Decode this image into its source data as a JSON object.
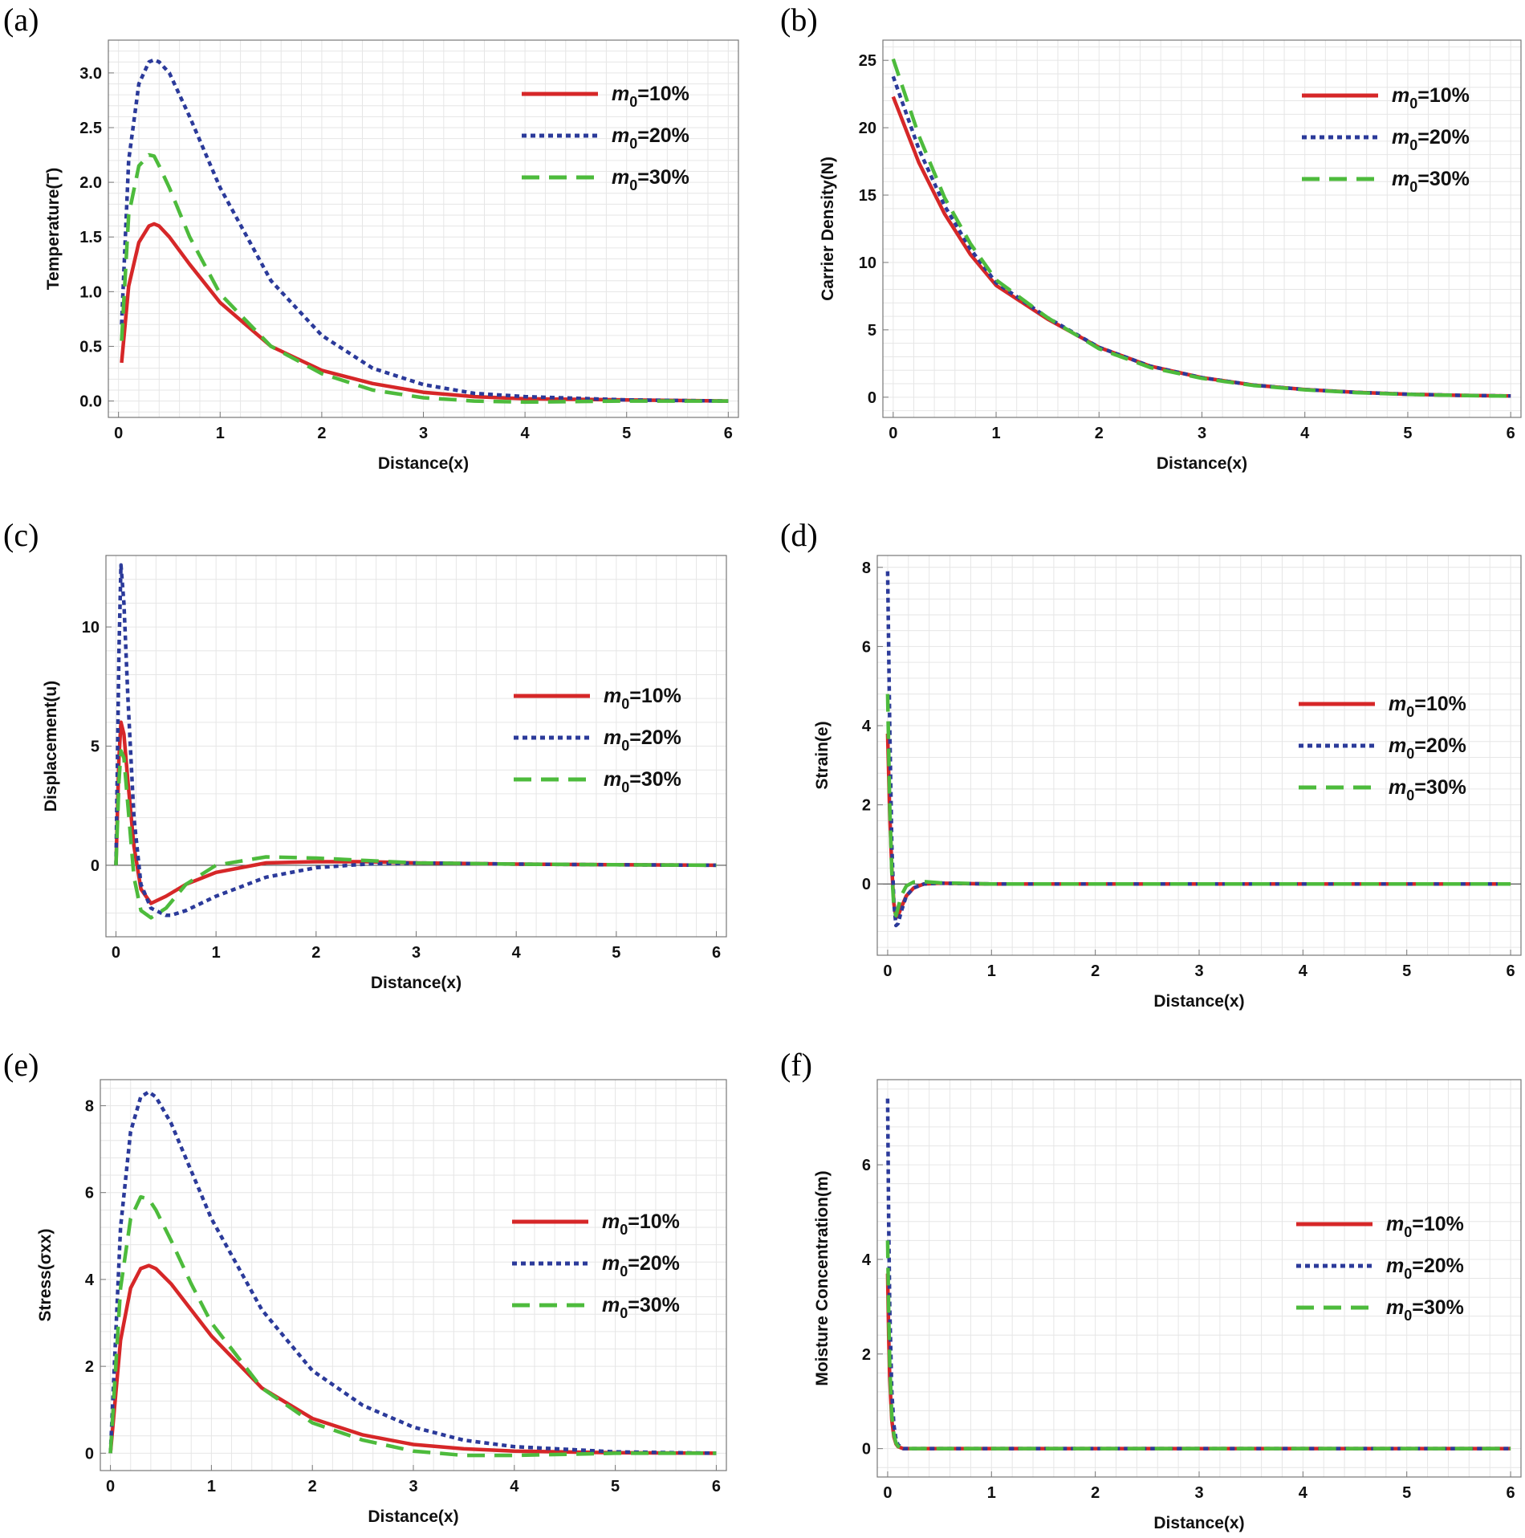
{
  "legend_labels": [
    "m0=10%",
    "m0=20%",
    "m0=30%"
  ],
  "legend_main": "m",
  "legend_sub": "0",
  "legend_suffix": [
    "=10%",
    "=20%",
    "=30%"
  ],
  "colors": {
    "m0_10": "#d62728",
    "m0_20": "#2b3a9a",
    "m0_30": "#4dbb3c"
  },
  "chart_data": [
    {
      "type": "line",
      "panel_label": "(a)",
      "title": "",
      "xlabel": "Distance(x)",
      "ylabel": "Temperature(T)",
      "xlim": [
        -0.1,
        6.1
      ],
      "ylim": [
        -0.15,
        3.3
      ],
      "xticks": [
        0,
        1,
        2,
        3,
        4,
        5,
        6
      ],
      "yticks": [
        0.0,
        0.5,
        1.0,
        1.5,
        2.0,
        2.5,
        3.0
      ],
      "ytick_labels": [
        "0.0",
        "0.5",
        "1.0",
        "1.5",
        "2.0",
        "2.5",
        "3.0"
      ],
      "zero_line": false,
      "series": [
        {
          "name": "m0=10%",
          "x": [
            0.03,
            0.1,
            0.2,
            0.3,
            0.35,
            0.4,
            0.5,
            0.7,
            1.0,
            1.5,
            2.0,
            2.5,
            3.0,
            3.5,
            4.0,
            5.0,
            6.0
          ],
          "values": [
            0.35,
            1.05,
            1.45,
            1.6,
            1.62,
            1.6,
            1.5,
            1.25,
            0.9,
            0.5,
            0.28,
            0.16,
            0.08,
            0.04,
            0.02,
            0.01,
            0.0
          ]
        },
        {
          "name": "m0=20%",
          "x": [
            0.03,
            0.1,
            0.2,
            0.3,
            0.35,
            0.4,
            0.5,
            0.7,
            1.0,
            1.5,
            2.0,
            2.5,
            3.0,
            3.5,
            4.0,
            5.0,
            6.0
          ],
          "values": [
            0.7,
            2.2,
            2.9,
            3.1,
            3.12,
            3.1,
            3.0,
            2.6,
            1.95,
            1.1,
            0.6,
            0.3,
            0.15,
            0.07,
            0.04,
            0.01,
            0.0
          ]
        },
        {
          "name": "m0=30%",
          "x": [
            0.03,
            0.1,
            0.2,
            0.3,
            0.35,
            0.4,
            0.5,
            0.7,
            1.0,
            1.5,
            2.0,
            2.5,
            3.0,
            3.5,
            4.0,
            5.0,
            6.0
          ],
          "values": [
            0.55,
            1.7,
            2.15,
            2.25,
            2.24,
            2.15,
            1.95,
            1.5,
            0.98,
            0.5,
            0.25,
            0.1,
            0.03,
            0.0,
            -0.01,
            0.0,
            0.0
          ]
        }
      ],
      "legend_position": "top-right"
    },
    {
      "type": "line",
      "panel_label": "(b)",
      "title": "",
      "xlabel": "Distance(x)",
      "ylabel": "Carrier Density(N)",
      "xlim": [
        -0.1,
        6.1
      ],
      "ylim": [
        -1.5,
        26.5
      ],
      "xticks": [
        0,
        1,
        2,
        3,
        4,
        5,
        6
      ],
      "yticks": [
        0,
        5,
        10,
        15,
        20,
        25
      ],
      "ytick_labels": [
        "0",
        "5",
        "10",
        "15",
        "20",
        "25"
      ],
      "zero_line": false,
      "series": [
        {
          "name": "m0=10%",
          "x": [
            0,
            0.25,
            0.5,
            0.75,
            1.0,
            1.5,
            2.0,
            2.5,
            3.0,
            3.5,
            4.0,
            4.5,
            5.0,
            5.5,
            6.0
          ],
          "values": [
            22.3,
            17.4,
            13.6,
            10.6,
            8.3,
            5.8,
            3.7,
            2.3,
            1.45,
            0.9,
            0.57,
            0.36,
            0.22,
            0.14,
            0.09
          ]
        },
        {
          "name": "m0=20%",
          "x": [
            0,
            0.25,
            0.5,
            0.75,
            1.0,
            1.5,
            2.0,
            2.5,
            3.0,
            3.5,
            4.0,
            4.5,
            5.0,
            5.5,
            6.0
          ],
          "values": [
            23.8,
            18.4,
            14.2,
            11.0,
            8.5,
            5.9,
            3.7,
            2.3,
            1.45,
            0.9,
            0.57,
            0.36,
            0.22,
            0.14,
            0.09
          ]
        },
        {
          "name": "m0=30%",
          "x": [
            0,
            0.25,
            0.5,
            0.75,
            1.0,
            1.5,
            2.0,
            2.5,
            3.0,
            3.5,
            4.0,
            4.5,
            5.0,
            5.5,
            6.0
          ],
          "values": [
            25.1,
            19.4,
            14.8,
            11.4,
            8.7,
            5.9,
            3.6,
            2.2,
            1.4,
            0.87,
            0.55,
            0.34,
            0.21,
            0.13,
            0.08
          ]
        }
      ],
      "legend_position": "top-right"
    },
    {
      "type": "line",
      "panel_label": "(c)",
      "title": "",
      "xlabel": "Distance(x)",
      "ylabel": "Displacement(u)",
      "xlim": [
        -0.1,
        6.1
      ],
      "ylim": [
        -3.0,
        13.0
      ],
      "xticks": [
        0,
        1,
        2,
        3,
        4,
        5,
        6
      ],
      "yticks": [
        0,
        5,
        10
      ],
      "ytick_labels": [
        "0",
        "5",
        "10"
      ],
      "zero_line": true,
      "series": [
        {
          "name": "m0=10%",
          "x": [
            0,
            0.03,
            0.05,
            0.08,
            0.12,
            0.18,
            0.25,
            0.35,
            0.5,
            0.7,
            1.0,
            1.5,
            2.0,
            2.5,
            3.0,
            4.0,
            5.0,
            6.0
          ],
          "values": [
            0,
            4.5,
            6.0,
            5.5,
            3.5,
            0.8,
            -1.0,
            -1.6,
            -1.3,
            -0.8,
            -0.3,
            0.1,
            0.15,
            0.15,
            0.1,
            0.05,
            0.02,
            0.0
          ]
        },
        {
          "name": "m0=20%",
          "x": [
            0,
            0.03,
            0.05,
            0.08,
            0.12,
            0.18,
            0.25,
            0.35,
            0.5,
            0.55,
            0.7,
            1.0,
            1.5,
            2.0,
            2.5,
            3.0,
            4.0,
            5.0,
            6.0
          ],
          "values": [
            0,
            9.0,
            12.6,
            11.0,
            7.0,
            2.0,
            -0.8,
            -1.8,
            -2.1,
            -2.1,
            -1.9,
            -1.3,
            -0.5,
            -0.1,
            0.05,
            0.1,
            0.05,
            0.02,
            0.0
          ]
        },
        {
          "name": "m0=30%",
          "x": [
            0,
            0.03,
            0.05,
            0.08,
            0.12,
            0.18,
            0.25,
            0.35,
            0.5,
            0.7,
            1.0,
            1.5,
            2.0,
            2.5,
            3.0,
            4.0,
            5.0,
            6.0
          ],
          "values": [
            0,
            3.5,
            4.8,
            4.5,
            2.5,
            -0.5,
            -1.9,
            -2.2,
            -1.8,
            -0.8,
            0.0,
            0.35,
            0.3,
            0.2,
            0.1,
            0.05,
            0.02,
            0.0
          ]
        }
      ],
      "legend_position": "middle-right"
    },
    {
      "type": "line",
      "panel_label": "(d)",
      "title": "",
      "xlabel": "Distance(x)",
      "ylabel": "Strain(e)",
      "xlim": [
        -0.1,
        6.1
      ],
      "ylim": [
        -1.8,
        8.3
      ],
      "xticks": [
        0,
        1,
        2,
        3,
        4,
        5,
        6
      ],
      "yticks": [
        0,
        2,
        4,
        6,
        8
      ],
      "ytick_labels": [
        "0",
        "2",
        "4",
        "6",
        "8"
      ],
      "zero_line": true,
      "series": [
        {
          "name": "m0=10%",
          "x": [
            0,
            0.02,
            0.04,
            0.06,
            0.08,
            0.1,
            0.13,
            0.18,
            0.25,
            0.35,
            0.5,
            1.0,
            2.0,
            3.0,
            4.0,
            5.0,
            6.0
          ],
          "values": [
            3.8,
            1.8,
            0.4,
            -0.5,
            -0.85,
            -0.8,
            -0.6,
            -0.3,
            -0.1,
            0.0,
            0.02,
            0.0,
            0.0,
            0.0,
            0.0,
            0.0,
            0.0
          ]
        },
        {
          "name": "m0=20%",
          "x": [
            0,
            0.02,
            0.04,
            0.06,
            0.08,
            0.1,
            0.13,
            0.18,
            0.25,
            0.35,
            0.5,
            1.0,
            2.0,
            3.0,
            4.0,
            5.0,
            6.0
          ],
          "values": [
            7.9,
            4.0,
            1.0,
            -0.5,
            -1.05,
            -1.0,
            -0.7,
            -0.3,
            -0.1,
            0.0,
            0.02,
            0.0,
            0.0,
            0.0,
            0.0,
            0.0,
            0.0
          ]
        },
        {
          "name": "m0=30%",
          "x": [
            0,
            0.02,
            0.04,
            0.06,
            0.08,
            0.1,
            0.13,
            0.18,
            0.25,
            0.35,
            0.5,
            1.0,
            2.0,
            3.0,
            4.0,
            5.0,
            6.0
          ],
          "values": [
            4.8,
            2.0,
            0.3,
            -0.6,
            -0.8,
            -0.6,
            -0.3,
            -0.05,
            0.05,
            0.06,
            0.03,
            0.0,
            0.0,
            0.0,
            0.0,
            0.0,
            0.0
          ]
        }
      ],
      "legend_position": "middle-right"
    },
    {
      "type": "line",
      "panel_label": "(e)",
      "title": "",
      "xlabel": "Distance(x)",
      "ylabel": "Stress(σxx)",
      "xlim": [
        -0.1,
        6.1
      ],
      "ylim": [
        -0.4,
        8.6
      ],
      "xticks": [
        0,
        1,
        2,
        3,
        4,
        5,
        6
      ],
      "yticks": [
        0,
        2,
        4,
        6,
        8
      ],
      "ytick_labels": [
        "0",
        "2",
        "4",
        "6",
        "8"
      ],
      "zero_line": false,
      "series": [
        {
          "name": "m0=10%",
          "x": [
            0,
            0.1,
            0.2,
            0.3,
            0.38,
            0.45,
            0.6,
            0.8,
            1.0,
            1.5,
            2.0,
            2.5,
            3.0,
            3.5,
            4.0,
            5.0,
            6.0
          ],
          "values": [
            0,
            2.6,
            3.8,
            4.25,
            4.32,
            4.25,
            3.9,
            3.3,
            2.7,
            1.5,
            0.8,
            0.42,
            0.2,
            0.1,
            0.05,
            0.01,
            0.0
          ]
        },
        {
          "name": "m0=20%",
          "x": [
            0,
            0.1,
            0.2,
            0.3,
            0.38,
            0.45,
            0.6,
            0.8,
            1.0,
            1.5,
            2.0,
            2.5,
            3.0,
            3.5,
            4.0,
            5.0,
            6.0
          ],
          "values": [
            0,
            5.2,
            7.4,
            8.2,
            8.32,
            8.2,
            7.6,
            6.5,
            5.4,
            3.3,
            1.9,
            1.1,
            0.6,
            0.3,
            0.15,
            0.03,
            0.0
          ]
        },
        {
          "name": "m0=30%",
          "x": [
            0,
            0.1,
            0.2,
            0.3,
            0.38,
            0.45,
            0.6,
            0.8,
            1.0,
            1.5,
            2.0,
            2.5,
            3.0,
            3.5,
            4.0,
            5.0,
            6.0
          ],
          "values": [
            0,
            3.8,
            5.4,
            5.9,
            5.85,
            5.6,
            4.9,
            3.9,
            3.0,
            1.5,
            0.7,
            0.3,
            0.05,
            -0.05,
            -0.05,
            0.0,
            0.0
          ]
        }
      ],
      "legend_position": "middle-right"
    },
    {
      "type": "line",
      "panel_label": "(f)",
      "title": "",
      "xlabel": "Distance(x)",
      "ylabel": "Moisture Concentration(m)",
      "xlim": [
        -0.1,
        6.1
      ],
      "ylim": [
        -0.6,
        7.8
      ],
      "xticks": [
        0,
        1,
        2,
        3,
        4,
        5,
        6
      ],
      "yticks": [
        0,
        2,
        4,
        6
      ],
      "ytick_labels": [
        "0",
        "2",
        "4",
        "6"
      ],
      "zero_line": false,
      "series": [
        {
          "name": "m0=10%",
          "x": [
            0,
            0.01,
            0.02,
            0.04,
            0.06,
            0.08,
            0.1,
            0.15,
            0.2,
            0.5,
            1.0,
            2.0,
            3.0,
            4.0,
            5.0,
            6.0
          ],
          "values": [
            3.7,
            2.4,
            1.5,
            0.6,
            0.25,
            0.1,
            0.04,
            0.0,
            0.0,
            0.0,
            0.0,
            0.0,
            0.0,
            0.0,
            0.0,
            0.0
          ]
        },
        {
          "name": "m0=20%",
          "x": [
            0,
            0.01,
            0.02,
            0.04,
            0.06,
            0.08,
            0.1,
            0.15,
            0.2,
            0.5,
            1.0,
            2.0,
            3.0,
            4.0,
            5.0,
            6.0
          ],
          "values": [
            7.4,
            4.8,
            3.0,
            1.2,
            0.5,
            0.2,
            0.08,
            0.0,
            0.0,
            0.0,
            0.0,
            0.0,
            0.0,
            0.0,
            0.0,
            0.0
          ]
        },
        {
          "name": "m0=30%",
          "x": [
            0,
            0.01,
            0.02,
            0.04,
            0.06,
            0.08,
            0.1,
            0.15,
            0.2,
            0.5,
            1.0,
            2.0,
            3.0,
            4.0,
            5.0,
            6.0
          ],
          "values": [
            4.4,
            2.9,
            1.8,
            0.7,
            0.3,
            0.12,
            0.05,
            0.0,
            0.0,
            0.0,
            0.0,
            0.0,
            0.0,
            0.0,
            0.0,
            0.0
          ]
        }
      ],
      "legend_position": "middle-right"
    }
  ]
}
